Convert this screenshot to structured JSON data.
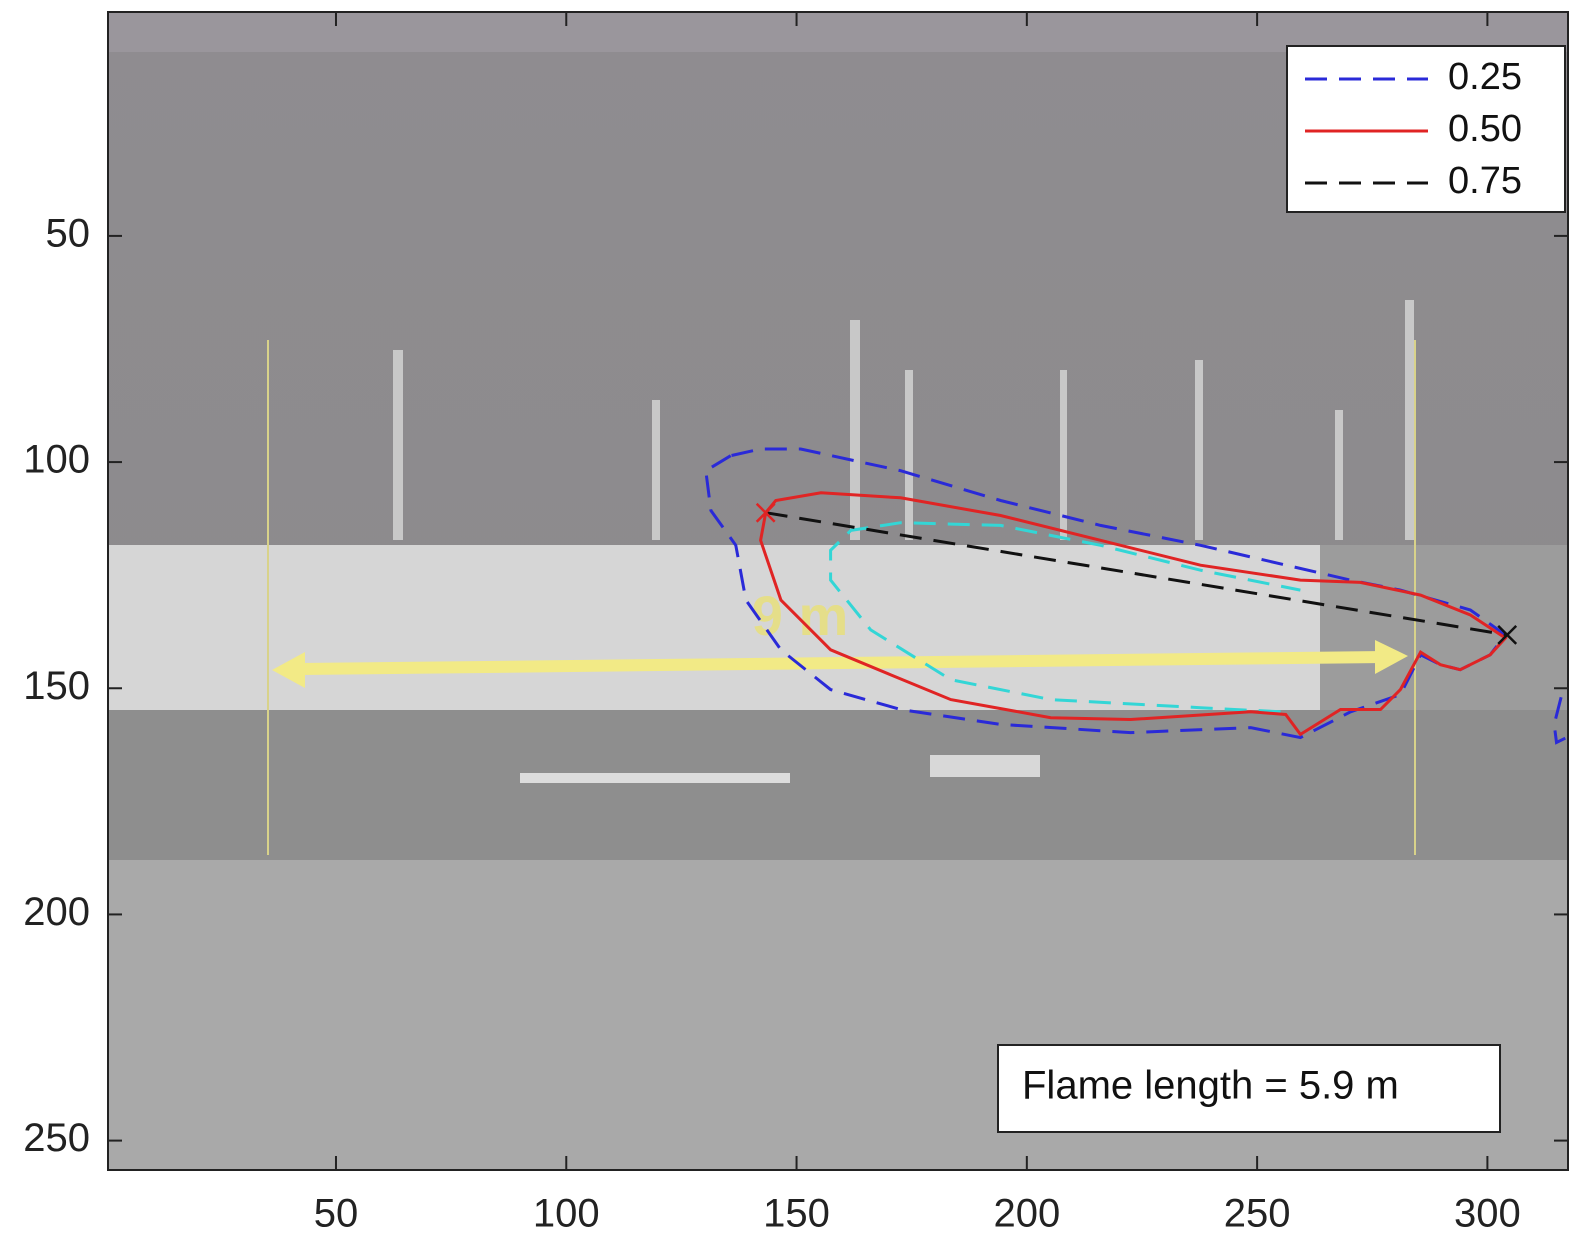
{
  "chart_data": {
    "type": "contour",
    "xlim": [
      0.5,
      317.5
    ],
    "ylim": [
      0.5,
      256.5
    ],
    "ydir": "reverse",
    "xticks": [
      50,
      100,
      150,
      200,
      250,
      300
    ],
    "yticks": [
      50,
      100,
      150,
      200,
      250
    ],
    "legend": "upper right",
    "series": [
      {
        "name": "0.25",
        "color": "#2a2ad8",
        "style": "dashed",
        "x": [
          135.7,
          130.3,
          131.4,
          136.8,
          139,
          146.6,
          157.4,
          172.6,
          194.3,
          222.5,
          248.6,
          259.4,
          270.3,
          281.1,
          285.5,
          289.8,
          294.1,
          300.6,
          303.9,
          296.3,
          281.1,
          270.3,
          237.7,
          216,
          194.3,
          172.6,
          150.9,
          142.2,
          135.7,
          null,
          316,
          314.5,
          315,
          317
        ],
        "y": [
          98.6,
          101.9,
          110.7,
          118.4,
          130.5,
          141.5,
          150.3,
          154.7,
          158,
          159.8,
          158.7,
          160.9,
          155.2,
          151.4,
          142.6,
          144.8,
          145.9,
          142.6,
          138.2,
          132.7,
          128.3,
          126.1,
          118.4,
          114,
          108.5,
          101.9,
          97.1,
          97.1,
          98.6,
          null,
          152,
          158,
          162,
          161
        ]
      },
      {
        "name": "0.50",
        "color": "#e02424",
        "style": "solid",
        "x": [
          143.3,
          142.2,
          146.6,
          157.4,
          170.4,
          183.5,
          205.2,
          222.5,
          248.6,
          256.2,
          259.4,
          268.1,
          276.8,
          281.1,
          285.5,
          289.8,
          294.1,
          300.6,
          303.9,
          296.3,
          285.5,
          272.4,
          259.4,
          237.7,
          216,
          194.3,
          172.6,
          155.3,
          145.5,
          143.3
        ],
        "y": [
          111.2,
          117.3,
          130.5,
          141.5,
          147,
          152.5,
          156.5,
          156.9,
          155.2,
          155.8,
          160.2,
          154.7,
          154.7,
          150.3,
          142,
          144.8,
          145.9,
          142.6,
          138.9,
          133.8,
          129.4,
          126.6,
          126.1,
          122.8,
          117.3,
          111.8,
          107.9,
          106.8,
          108.5,
          111.2
        ]
      },
      {
        "name": "0.75",
        "color": "#111111",
        "style": "dashed",
        "x": [
          143.3,
          304.3
        ],
        "y": [
          111.2,
          138.2
        ]
      }
    ],
    "lines": [
      {
        "color": "#33d6d6",
        "style": "dashed",
        "x": [
          255.1,
          237.7,
          205.2,
          183.5,
          166.1,
          157.4,
          157.4,
          161.8,
          172.6,
          194.3,
          216,
          237.7,
          259.4
        ],
        "y": [
          155.2,
          154.3,
          152.5,
          148.1,
          137.1,
          126.1,
          119.5,
          115.1,
          113.4,
          114,
          118.4,
          123.9,
          128.3
        ]
      }
    ],
    "markers": [
      {
        "x": 143.3,
        "y": 111.2,
        "color": "#e02424"
      },
      {
        "x": 304.3,
        "y": 138.2,
        "color": "#111111"
      }
    ],
    "arrow_label": "9 m",
    "textbox": "Flame length = 5.9 m"
  }
}
